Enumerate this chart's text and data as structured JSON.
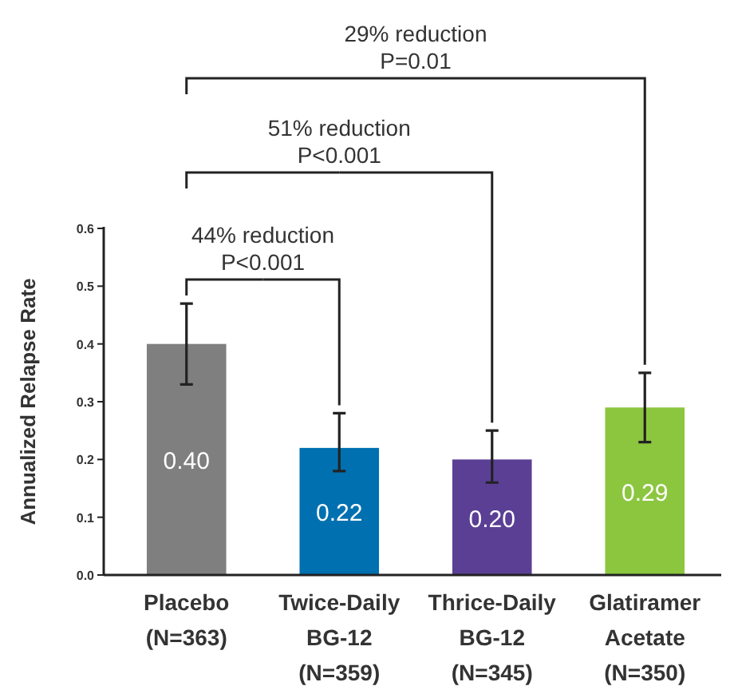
{
  "chart_data": {
    "type": "bar",
    "ylabel": "Annualized Relapse Rate",
    "categories": [
      "Placebo\n(N=363)",
      "Twice-Daily\nBG-12\n(N=359)",
      "Thrice-Daily\nBG-12\n(N=345)",
      "Glatiramer\nAcetate\n(N=350)"
    ],
    "values": [
      0.4,
      0.22,
      0.2,
      0.29
    ],
    "colors": [
      "#7f7f80",
      "#0070b0",
      "#5b3f95",
      "#8cc63f"
    ],
    "errors": [
      [
        0.33,
        0.47
      ],
      [
        0.18,
        0.28
      ],
      [
        0.16,
        0.25
      ],
      [
        0.23,
        0.35
      ]
    ],
    "value_labels": [
      "0.40",
      "0.22",
      "0.20",
      "0.29"
    ],
    "ylim": [
      0,
      0.6
    ],
    "yticks": [
      {
        "value": 0,
        "label": "0.0"
      },
      0.1,
      0.2,
      0.3,
      0.4,
      0.5,
      0.6
    ],
    "annotations": [
      "44% reduction\nP<0.001",
      "51% reduction\nP<0.001",
      "29% reduction\nP=0.01"
    ]
  }
}
